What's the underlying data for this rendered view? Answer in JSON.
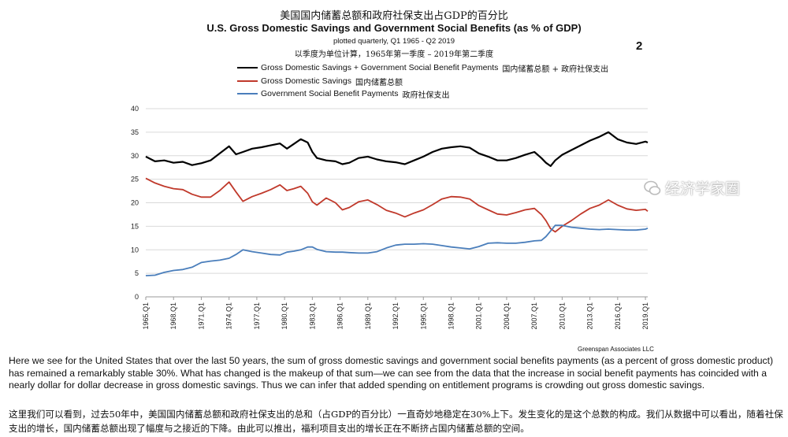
{
  "header": {
    "cn_title": "美国国内储蓄总额和政府社保支出占GDP的百分比",
    "en_title": "U.S. Gross Domestic Savings and Government Social Benefits (as % of GDP)",
    "subtitle": "plotted quarterly, Q1 1965 - Q2 2019",
    "cn_subtitle": "以季度为单位计算，1965年第一季度 – 2019年第二季度",
    "page_number": "2"
  },
  "legend": [
    {
      "label": "Gross Domestic Savings + Government Social Benefit Payments",
      "cn": "国内储蓄总额 + 政府社保支出",
      "color": "#000000"
    },
    {
      "label": "Gross Domestic Savings",
      "cn": "国内储蓄总额",
      "color": "#c0392b"
    },
    {
      "label": "Government Social Benefit Payments",
      "cn": "政府社保支出",
      "color": "#4a7ebb"
    }
  ],
  "credit": "Greenspan Associates LLC",
  "watermark": "经济学家圈",
  "paragraph_en": "Here we see for the United States that over the last 50 years, the sum of gross domestic savings and government social benefits payments (as a percent of gross domestic product) has remained a remarkably stable 30%. What has changed is the makeup of that sum—we can see from the data that the increase in social benefit payments has coincided with a nearly dollar for dollar decrease in gross domestic savings. Thus we can infer that added spending on entitlement programs is crowding out gross domestic savings.",
  "paragraph_cn": "这里我们可以看到，过去50年中，美国国内储蓄总额和政府社保支出的总和（占GDP的百分比）一直奇妙地稳定在30%上下。发生变化的是这个总数的构成。我们从数据中可以看出，随着社保支出的增长，国内储蓄总额出现了幅度与之接近的下降。由此可以推出，福利项目支出的增长正在不断挤占国内储蓄总额的空间。",
  "chart_data": {
    "type": "line",
    "ylim": [
      0,
      40
    ],
    "yticks": [
      "0",
      "5",
      "10",
      "15",
      "20",
      "25",
      "30",
      "35",
      "40"
    ],
    "xlim": [
      1965.0,
      2019.25
    ],
    "xtick_labels": [
      "1965.Q1",
      "1968.Q1",
      "1971.Q1",
      "1974.Q1",
      "1977.Q1",
      "1980.Q1",
      "1983.Q1",
      "1986.Q1",
      "1989.Q1",
      "1992.Q1",
      "1995.Q1",
      "1998.Q1",
      "2001.Q1",
      "2004.Q1",
      "2007.Q1",
      "2010.Q1",
      "2013.Q1",
      "2016.Q1",
      "2019.Q1"
    ],
    "grid": "horizontal",
    "legend_position": "top",
    "series": [
      {
        "name": "Gross Domestic Savings + Government Social Benefit Payments",
        "color": "#000000",
        "points": [
          [
            1965.0,
            29.8
          ],
          [
            1966.0,
            28.8
          ],
          [
            1967.0,
            29.0
          ],
          [
            1968.0,
            28.5
          ],
          [
            1969.0,
            28.7
          ],
          [
            1970.0,
            28.0
          ],
          [
            1971.0,
            28.4
          ],
          [
            1972.0,
            29.0
          ],
          [
            1973.0,
            30.5
          ],
          [
            1974.0,
            32.0
          ],
          [
            1974.75,
            30.3
          ],
          [
            1975.5,
            30.8
          ],
          [
            1976.5,
            31.5
          ],
          [
            1977.5,
            31.8
          ],
          [
            1978.5,
            32.2
          ],
          [
            1979.5,
            32.6
          ],
          [
            1980.25,
            31.5
          ],
          [
            1981.0,
            32.5
          ],
          [
            1981.75,
            33.5
          ],
          [
            1982.5,
            32.8
          ],
          [
            1983.0,
            30.8
          ],
          [
            1983.5,
            29.5
          ],
          [
            1984.5,
            29.0
          ],
          [
            1985.5,
            28.8
          ],
          [
            1986.25,
            28.2
          ],
          [
            1987.0,
            28.5
          ],
          [
            1988.0,
            29.5
          ],
          [
            1989.0,
            29.8
          ],
          [
            1990.0,
            29.2
          ],
          [
            1991.0,
            28.8
          ],
          [
            1992.0,
            28.6
          ],
          [
            1993.0,
            28.2
          ],
          [
            1994.0,
            29.0
          ],
          [
            1995.0,
            29.8
          ],
          [
            1996.0,
            30.8
          ],
          [
            1997.0,
            31.5
          ],
          [
            1998.0,
            31.8
          ],
          [
            1999.0,
            32.0
          ],
          [
            2000.0,
            31.7
          ],
          [
            2001.0,
            30.5
          ],
          [
            2002.0,
            29.8
          ],
          [
            2003.0,
            29.0
          ],
          [
            2004.0,
            29.0
          ],
          [
            2005.0,
            29.5
          ],
          [
            2006.0,
            30.2
          ],
          [
            2007.0,
            30.8
          ],
          [
            2007.75,
            29.5
          ],
          [
            2008.25,
            28.5
          ],
          [
            2008.75,
            27.8
          ],
          [
            2009.25,
            29.0
          ],
          [
            2010.0,
            30.2
          ],
          [
            2011.0,
            31.2
          ],
          [
            2012.0,
            32.2
          ],
          [
            2013.0,
            33.2
          ],
          [
            2014.0,
            34.0
          ],
          [
            2015.0,
            35.0
          ],
          [
            2016.0,
            33.5
          ],
          [
            2017.0,
            32.8
          ],
          [
            2018.0,
            32.5
          ],
          [
            2019.0,
            33.0
          ],
          [
            2019.25,
            32.8
          ]
        ]
      },
      {
        "name": "Gross Domestic Savings",
        "color": "#c0392b",
        "points": [
          [
            1965.0,
            25.2
          ],
          [
            1966.0,
            24.2
          ],
          [
            1967.0,
            23.5
          ],
          [
            1968.0,
            23.0
          ],
          [
            1969.0,
            22.8
          ],
          [
            1970.0,
            21.8
          ],
          [
            1971.0,
            21.2
          ],
          [
            1972.0,
            21.2
          ],
          [
            1973.0,
            22.6
          ],
          [
            1974.0,
            24.4
          ],
          [
            1974.75,
            22.3
          ],
          [
            1975.5,
            20.3
          ],
          [
            1976.5,
            21.3
          ],
          [
            1977.5,
            22.0
          ],
          [
            1978.5,
            22.8
          ],
          [
            1979.5,
            23.8
          ],
          [
            1980.25,
            22.6
          ],
          [
            1981.0,
            23.0
          ],
          [
            1981.75,
            23.5
          ],
          [
            1982.5,
            22.0
          ],
          [
            1983.0,
            20.2
          ],
          [
            1983.5,
            19.5
          ],
          [
            1984.5,
            21.0
          ],
          [
            1985.5,
            20.0
          ],
          [
            1986.25,
            18.5
          ],
          [
            1987.0,
            19.0
          ],
          [
            1988.0,
            20.2
          ],
          [
            1989.0,
            20.6
          ],
          [
            1990.0,
            19.6
          ],
          [
            1991.0,
            18.4
          ],
          [
            1992.0,
            17.8
          ],
          [
            1993.0,
            17.0
          ],
          [
            1994.0,
            17.8
          ],
          [
            1995.0,
            18.5
          ],
          [
            1996.0,
            19.6
          ],
          [
            1997.0,
            20.8
          ],
          [
            1998.0,
            21.3
          ],
          [
            1999.0,
            21.2
          ],
          [
            2000.0,
            20.8
          ],
          [
            2001.0,
            19.4
          ],
          [
            2002.0,
            18.5
          ],
          [
            2003.0,
            17.6
          ],
          [
            2004.0,
            17.4
          ],
          [
            2005.0,
            17.9
          ],
          [
            2006.0,
            18.5
          ],
          [
            2007.0,
            18.8
          ],
          [
            2007.75,
            17.5
          ],
          [
            2008.25,
            16.2
          ],
          [
            2008.75,
            14.5
          ],
          [
            2009.25,
            13.8
          ],
          [
            2010.0,
            15.0
          ],
          [
            2011.0,
            16.2
          ],
          [
            2012.0,
            17.6
          ],
          [
            2013.0,
            18.8
          ],
          [
            2014.0,
            19.5
          ],
          [
            2015.0,
            20.6
          ],
          [
            2016.0,
            19.5
          ],
          [
            2017.0,
            18.7
          ],
          [
            2018.0,
            18.4
          ],
          [
            2019.0,
            18.6
          ],
          [
            2019.25,
            18.2
          ]
        ]
      },
      {
        "name": "Government Social Benefit Payments",
        "color": "#4a7ebb",
        "points": [
          [
            1965.0,
            4.5
          ],
          [
            1966.0,
            4.6
          ],
          [
            1967.0,
            5.2
          ],
          [
            1968.0,
            5.6
          ],
          [
            1969.0,
            5.8
          ],
          [
            1970.0,
            6.3
          ],
          [
            1971.0,
            7.3
          ],
          [
            1972.0,
            7.6
          ],
          [
            1973.0,
            7.8
          ],
          [
            1974.0,
            8.2
          ],
          [
            1974.75,
            9.0
          ],
          [
            1975.5,
            10.0
          ],
          [
            1976.5,
            9.6
          ],
          [
            1977.5,
            9.3
          ],
          [
            1978.5,
            9.0
          ],
          [
            1979.5,
            8.9
          ],
          [
            1980.25,
            9.5
          ],
          [
            1981.0,
            9.7
          ],
          [
            1981.75,
            10.0
          ],
          [
            1982.5,
            10.6
          ],
          [
            1983.0,
            10.6
          ],
          [
            1983.5,
            10.1
          ],
          [
            1984.5,
            9.6
          ],
          [
            1985.5,
            9.5
          ],
          [
            1986.25,
            9.5
          ],
          [
            1987.0,
            9.4
          ],
          [
            1988.0,
            9.3
          ],
          [
            1989.0,
            9.3
          ],
          [
            1990.0,
            9.6
          ],
          [
            1991.0,
            10.4
          ],
          [
            1992.0,
            11.0
          ],
          [
            1993.0,
            11.2
          ],
          [
            1994.0,
            11.2
          ],
          [
            1995.0,
            11.3
          ],
          [
            1996.0,
            11.2
          ],
          [
            1997.0,
            10.9
          ],
          [
            1998.0,
            10.6
          ],
          [
            1999.0,
            10.4
          ],
          [
            2000.0,
            10.2
          ],
          [
            2001.0,
            10.7
          ],
          [
            2002.0,
            11.4
          ],
          [
            2003.0,
            11.5
          ],
          [
            2004.0,
            11.4
          ],
          [
            2005.0,
            11.4
          ],
          [
            2006.0,
            11.6
          ],
          [
            2007.0,
            11.9
          ],
          [
            2007.75,
            12.0
          ],
          [
            2008.25,
            12.8
          ],
          [
            2008.75,
            14.0
          ],
          [
            2009.25,
            15.2
          ],
          [
            2010.0,
            15.2
          ],
          [
            2011.0,
            14.8
          ],
          [
            2012.0,
            14.6
          ],
          [
            2013.0,
            14.4
          ],
          [
            2014.0,
            14.3
          ],
          [
            2015.0,
            14.4
          ],
          [
            2016.0,
            14.3
          ],
          [
            2017.0,
            14.2
          ],
          [
            2018.0,
            14.2
          ],
          [
            2019.0,
            14.4
          ],
          [
            2019.25,
            14.6
          ]
        ]
      }
    ]
  }
}
